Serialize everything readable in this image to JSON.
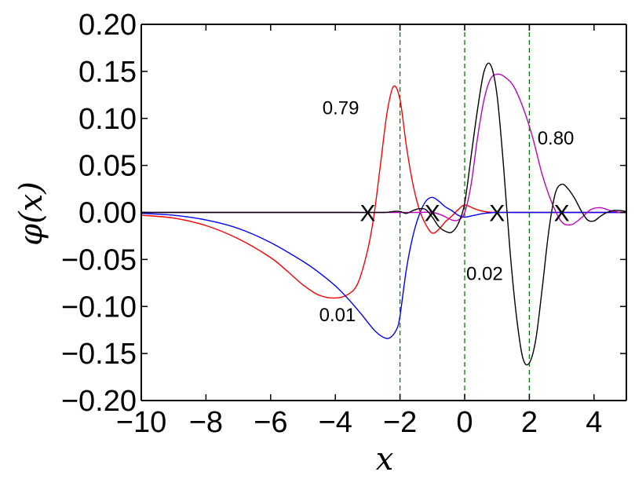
{
  "chart_data": {
    "type": "line",
    "xlabel": "x",
    "ylabel": "φ(x)",
    "xlim": [
      -10,
      5
    ],
    "ylim": [
      -0.2,
      0.2
    ],
    "x_ticks": [
      -10,
      -8,
      -6,
      -4,
      -2,
      0,
      2,
      4
    ],
    "x_tick_labels": [
      "−10",
      "−8",
      "−6",
      "−4",
      "−2",
      "0",
      "2",
      "4"
    ],
    "y_ticks": [
      0.2,
      0.15,
      0.1,
      0.05,
      0.0,
      -0.05,
      -0.1,
      -0.15,
      -0.2
    ],
    "y_tick_labels": [
      "0.20",
      "0.15",
      "0.10",
      "0.05",
      "0.00",
      "−0.05",
      "−0.10",
      "−0.15",
      "−0.20"
    ],
    "grid": false,
    "vertical_lines": {
      "x": [
        -2,
        0,
        2
      ],
      "color": "#008000",
      "style": "dashed"
    },
    "markers": {
      "symbol": "X",
      "x": [
        -3,
        -1,
        1,
        3
      ],
      "y": 0.0
    },
    "annotations": [
      {
        "text": "0.79",
        "x": -4.4,
        "y": 0.111,
        "color": "#000000"
      },
      {
        "text": "0.01",
        "x": -4.5,
        "y": -0.109,
        "color": "#000000"
      },
      {
        "text": "0.02",
        "x": 0.05,
        "y": -0.065,
        "color": "#000000"
      },
      {
        "text": "0.80",
        "x": 2.25,
        "y": 0.079,
        "color": "#000000"
      }
    ],
    "series": [
      {
        "color": "#ff0000",
        "x": [
          -10,
          -9,
          -8,
          -7,
          -6,
          -5.5,
          -5,
          -4.5,
          -4,
          -3.6,
          -3.3,
          -3.0,
          -2.8,
          -2.6,
          -2.4,
          -2.2,
          -2.0,
          -1.8,
          -1.6,
          -1.4,
          -1.2,
          -1.0,
          -0.8,
          -0.6,
          -0.4,
          -0.2,
          0.0,
          0.3,
          0.6,
          1.0,
          1.5,
          2.0,
          2.5,
          3.0,
          3.5,
          4.0,
          4.5,
          5.0
        ],
        "y": [
          -0.003,
          -0.006,
          -0.014,
          -0.028,
          -0.048,
          -0.062,
          -0.077,
          -0.088,
          -0.091,
          -0.087,
          -0.075,
          -0.04,
          -0.002,
          0.052,
          0.106,
          0.134,
          0.12,
          0.07,
          0.03,
          0.003,
          -0.013,
          -0.022,
          -0.018,
          -0.01,
          -0.004,
          0.003,
          0.008,
          0.004,
          0.001,
          0.0,
          0.0,
          0.0,
          0.0,
          0.0,
          0.0,
          0.0,
          0.0,
          0.0
        ]
      },
      {
        "color": "#0000ff",
        "x": [
          -10,
          -9,
          -8,
          -7,
          -6,
          -5,
          -4.5,
          -4,
          -3.6,
          -3.2,
          -2.8,
          -2.5,
          -2.3,
          -2.1,
          -2.0,
          -1.8,
          -1.6,
          -1.4,
          -1.2,
          -1.0,
          -0.8,
          -0.6,
          -0.4,
          -0.2,
          0.0,
          0.3,
          0.6,
          1.0,
          1.5,
          2.0,
          3.0,
          4.0,
          5.0
        ],
        "y": [
          -0.001,
          -0.003,
          -0.008,
          -0.017,
          -0.032,
          -0.052,
          -0.064,
          -0.078,
          -0.092,
          -0.108,
          -0.125,
          -0.133,
          -0.133,
          -0.124,
          -0.11,
          -0.06,
          -0.025,
          -0.002,
          0.012,
          0.016,
          0.012,
          0.006,
          0.002,
          -0.003,
          -0.005,
          -0.003,
          -0.001,
          0.0,
          0.0,
          0.0,
          0.0,
          0.0,
          0.0
        ]
      },
      {
        "color": "#c000c0",
        "x": [
          -10,
          -6,
          -3,
          -2,
          -1.5,
          -1.0,
          -0.7,
          -0.4,
          -0.2,
          0.0,
          0.2,
          0.4,
          0.6,
          0.8,
          1.0,
          1.2,
          1.5,
          1.8,
          2.1,
          2.4,
          2.7,
          3.0,
          3.3,
          3.6,
          3.9,
          4.2,
          4.5,
          4.8,
          5.0
        ],
        "y": [
          0.0,
          0.0,
          0.0,
          0.0,
          0.0,
          0.0,
          -0.003,
          -0.008,
          -0.008,
          0.0,
          0.03,
          0.08,
          0.12,
          0.142,
          0.147,
          0.145,
          0.135,
          0.112,
          0.08,
          0.04,
          0.01,
          -0.01,
          -0.013,
          -0.006,
          0.003,
          0.005,
          0.002,
          0.0,
          0.0
        ]
      },
      {
        "color": "#000000",
        "x": [
          -10,
          -6,
          -4,
          -3.5,
          -2.5,
          -2.2,
          -2.0,
          -1.8,
          -1.6,
          -1.4,
          -1.2,
          -1.0,
          -0.8,
          -0.6,
          -0.4,
          -0.2,
          0.0,
          0.2,
          0.4,
          0.6,
          0.8,
          1.0,
          1.2,
          1.4,
          1.6,
          1.8,
          2.0,
          2.2,
          2.4,
          2.6,
          2.8,
          3.0,
          3.2,
          3.4,
          3.6,
          3.8,
          4.0,
          4.2,
          4.4,
          4.6,
          4.8,
          5.0
        ],
        "y": [
          0.0,
          0.0,
          0.0,
          0.0,
          0.0,
          0.001,
          0.001,
          -0.001,
          0.002,
          0.004,
          0.003,
          -0.005,
          -0.015,
          -0.02,
          -0.021,
          -0.012,
          0.01,
          0.06,
          0.11,
          0.15,
          0.157,
          0.125,
          0.05,
          -0.04,
          -0.11,
          -0.155,
          -0.16,
          -0.135,
          -0.08,
          -0.02,
          0.02,
          0.03,
          0.025,
          0.015,
          0.002,
          -0.008,
          -0.009,
          -0.004,
          0.0,
          0.002,
          0.002,
          0.001
        ]
      }
    ]
  }
}
